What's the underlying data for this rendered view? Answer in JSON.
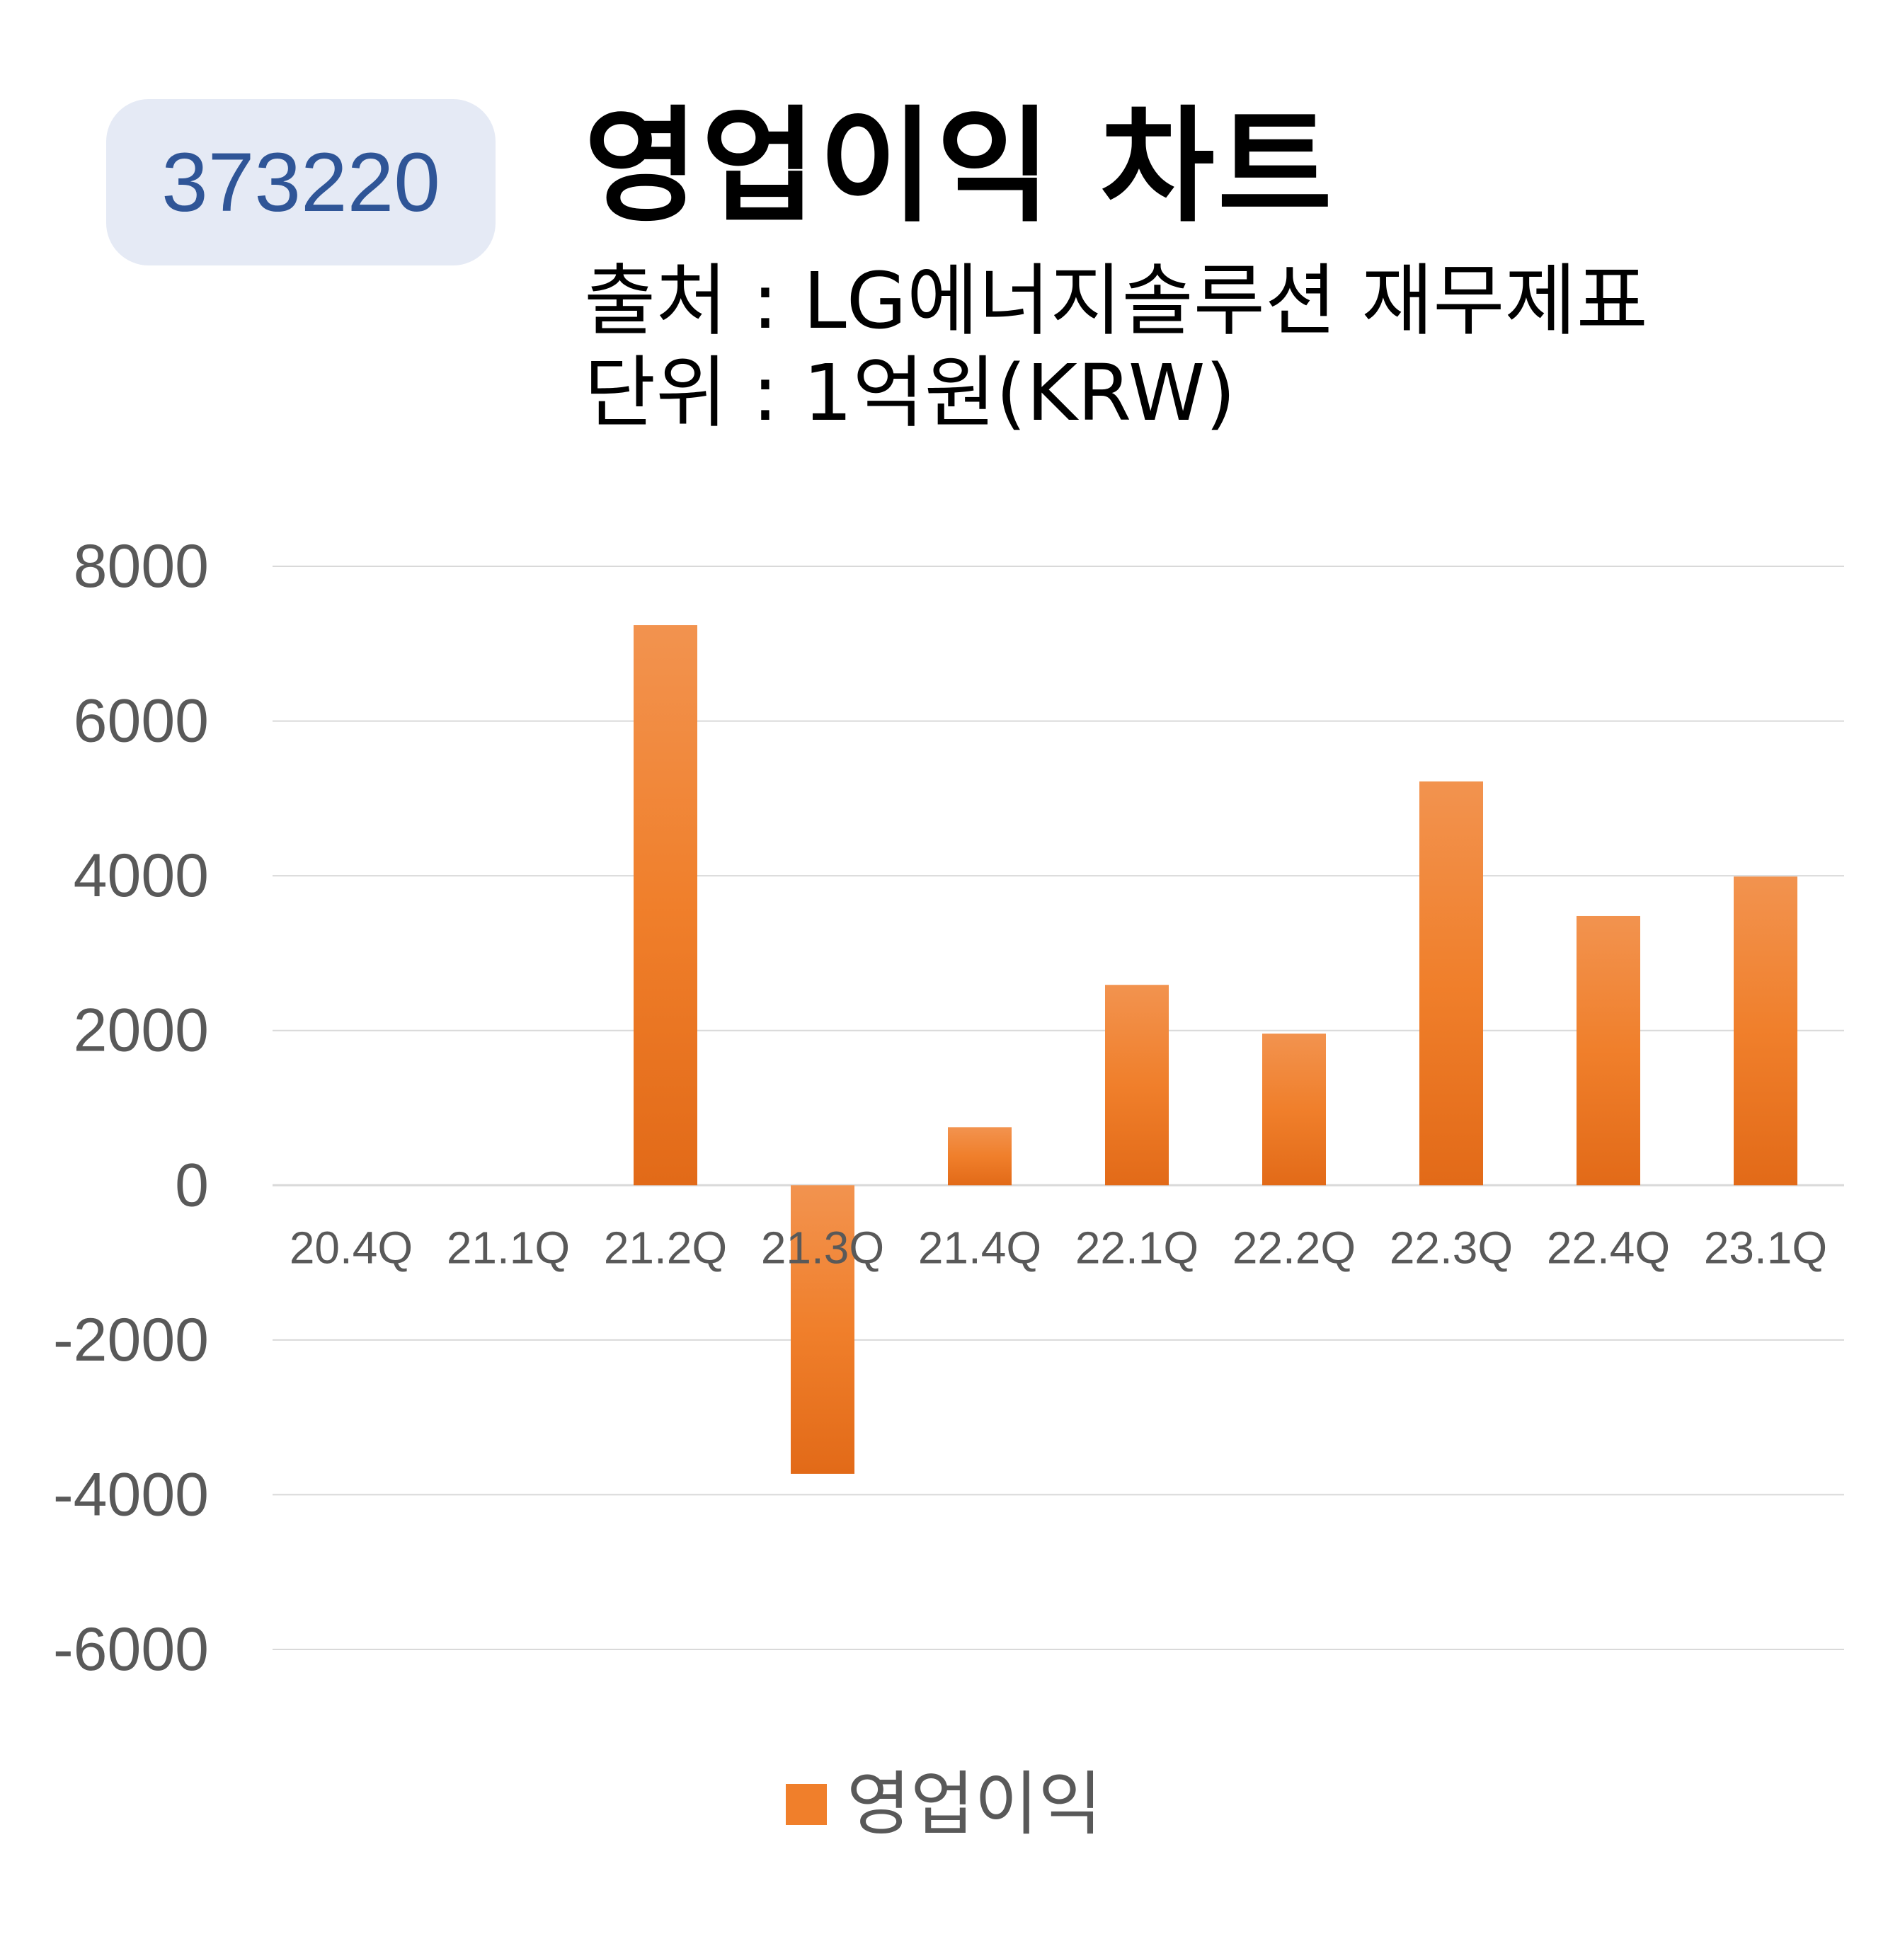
{
  "badge": {
    "code": "373220"
  },
  "header": {
    "title": "영업이익 차트",
    "source": "출처 : LG에너지솔루션 재무제표",
    "unit": "단위 : 1억원(KRW)"
  },
  "colors": {
    "bar": "#f07f2b",
    "bar_light": "#f2934f",
    "bar_dark": "#e26a18",
    "grid": "#d9d9d9",
    "tick": "#595959"
  },
  "chart_data": {
    "type": "bar",
    "categories": [
      "20.4Q",
      "21.1Q",
      "21.2Q",
      "21.3Q",
      "21.4Q",
      "22.1Q",
      "22.2Q",
      "22.3Q",
      "22.4Q",
      "23.1Q"
    ],
    "series": [
      {
        "name": "영업이익",
        "values": [
          0,
          0,
          7240,
          -3730,
          750,
          2590,
          1960,
          5220,
          3480,
          3990
        ]
      }
    ],
    "yticks": [
      8000,
      6000,
      4000,
      2000,
      0,
      -2000,
      -4000,
      -6000
    ],
    "ylim": [
      -6000,
      8000
    ],
    "grid": true,
    "legend_position": "bottom"
  }
}
